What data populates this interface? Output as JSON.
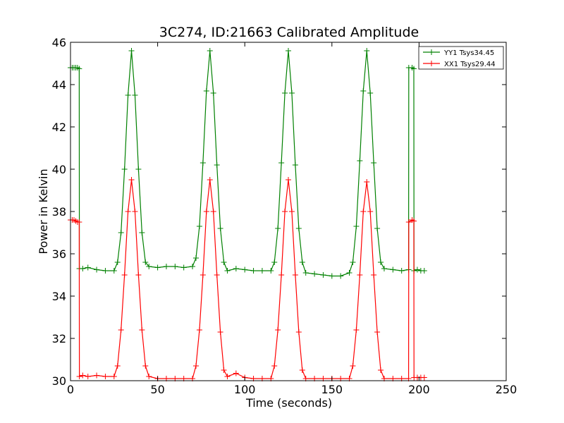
{
  "chart_data": {
    "type": "line",
    "title": "3C274, ID:21663 Calibrated Amplitude",
    "xlabel": "Time (seconds)",
    "ylabel": "Power in Kelvin",
    "xlim": [
      0,
      250
    ],
    "ylim": [
      30,
      46
    ],
    "xticks": [
      "0",
      "50",
      "100",
      "150",
      "200",
      "250"
    ],
    "yticks": [
      "30",
      "32",
      "34",
      "36",
      "38",
      "40",
      "42",
      "44",
      "46"
    ],
    "grid": false,
    "legend_position": "top-right",
    "series": [
      {
        "name": "YY1 Tsys34.45",
        "color": "#008000",
        "marker": "+",
        "x": [
          0,
          1,
          2,
          3,
          4,
          5,
          5.1,
          7,
          10,
          15,
          20,
          25,
          27,
          29,
          31,
          33,
          35,
          37,
          39,
          41,
          43,
          45,
          50,
          55,
          60,
          65,
          70,
          72,
          74,
          76,
          78,
          80,
          82,
          84,
          86,
          88,
          90,
          95,
          100,
          105,
          110,
          115,
          117,
          119,
          121,
          123,
          125,
          127,
          129,
          131,
          133,
          135,
          140,
          145,
          150,
          155,
          160,
          162,
          164,
          166,
          168,
          170,
          172,
          174,
          176,
          178,
          180,
          185,
          190,
          194,
          194.1,
          196,
          197,
          197.1,
          199,
          201,
          203
        ],
        "y": [
          44.8,
          44.8,
          44.8,
          44.8,
          44.8,
          44.75,
          35.3,
          35.3,
          35.35,
          35.25,
          35.2,
          35.2,
          35.6,
          37.0,
          40.0,
          43.5,
          45.6,
          43.5,
          40.0,
          37.0,
          35.6,
          35.4,
          35.35,
          35.4,
          35.4,
          35.35,
          35.4,
          35.8,
          37.3,
          40.3,
          43.7,
          45.6,
          43.6,
          40.2,
          37.2,
          35.6,
          35.2,
          35.3,
          35.25,
          35.2,
          35.2,
          35.2,
          35.6,
          37.2,
          40.3,
          43.6,
          45.6,
          43.6,
          40.2,
          37.2,
          35.6,
          35.1,
          35.05,
          35.0,
          34.95,
          34.95,
          35.1,
          35.6,
          37.3,
          40.4,
          43.7,
          45.6,
          43.6,
          40.3,
          37.2,
          35.6,
          35.3,
          35.25,
          35.2,
          35.25,
          44.8,
          44.8,
          44.75,
          35.2,
          35.25,
          35.2,
          35.2
        ]
      },
      {
        "name": "XX1 Tsys29.44",
        "color": "#ff0000",
        "marker": "+",
        "x": [
          0,
          1,
          2,
          3,
          4,
          5,
          5.1,
          7,
          10,
          15,
          20,
          25,
          27,
          29,
          31,
          33,
          35,
          37,
          39,
          41,
          43,
          45,
          50,
          55,
          60,
          65,
          70,
          72,
          74,
          76,
          78,
          80,
          82,
          84,
          86,
          88,
          90,
          95,
          100,
          105,
          110,
          115,
          117,
          119,
          121,
          123,
          125,
          127,
          129,
          131,
          133,
          135,
          140,
          145,
          150,
          155,
          160,
          162,
          164,
          166,
          168,
          170,
          172,
          174,
          176,
          178,
          180,
          185,
          190,
          194,
          194.1,
          196,
          197,
          197.1,
          199,
          201,
          203
        ],
        "y": [
          37.6,
          37.6,
          37.6,
          37.55,
          37.5,
          37.5,
          30.2,
          30.25,
          30.2,
          30.25,
          30.2,
          30.2,
          30.7,
          32.4,
          35.0,
          38.0,
          39.5,
          38.0,
          35.0,
          32.4,
          30.7,
          30.2,
          30.1,
          30.1,
          30.1,
          30.1,
          30.1,
          30.7,
          32.4,
          35.0,
          38.0,
          39.5,
          38.0,
          35.0,
          32.3,
          30.5,
          30.2,
          30.35,
          30.15,
          30.1,
          30.1,
          30.1,
          30.7,
          32.4,
          35.0,
          38.0,
          39.5,
          38.0,
          35.0,
          32.3,
          30.5,
          30.1,
          30.1,
          30.1,
          30.1,
          30.1,
          30.1,
          30.7,
          32.4,
          35.0,
          38.0,
          39.4,
          38.0,
          35.0,
          32.3,
          30.5,
          30.1,
          30.1,
          30.1,
          30.1,
          37.5,
          37.6,
          37.55,
          30.15,
          30.15,
          30.15,
          30.15
        ]
      }
    ]
  }
}
